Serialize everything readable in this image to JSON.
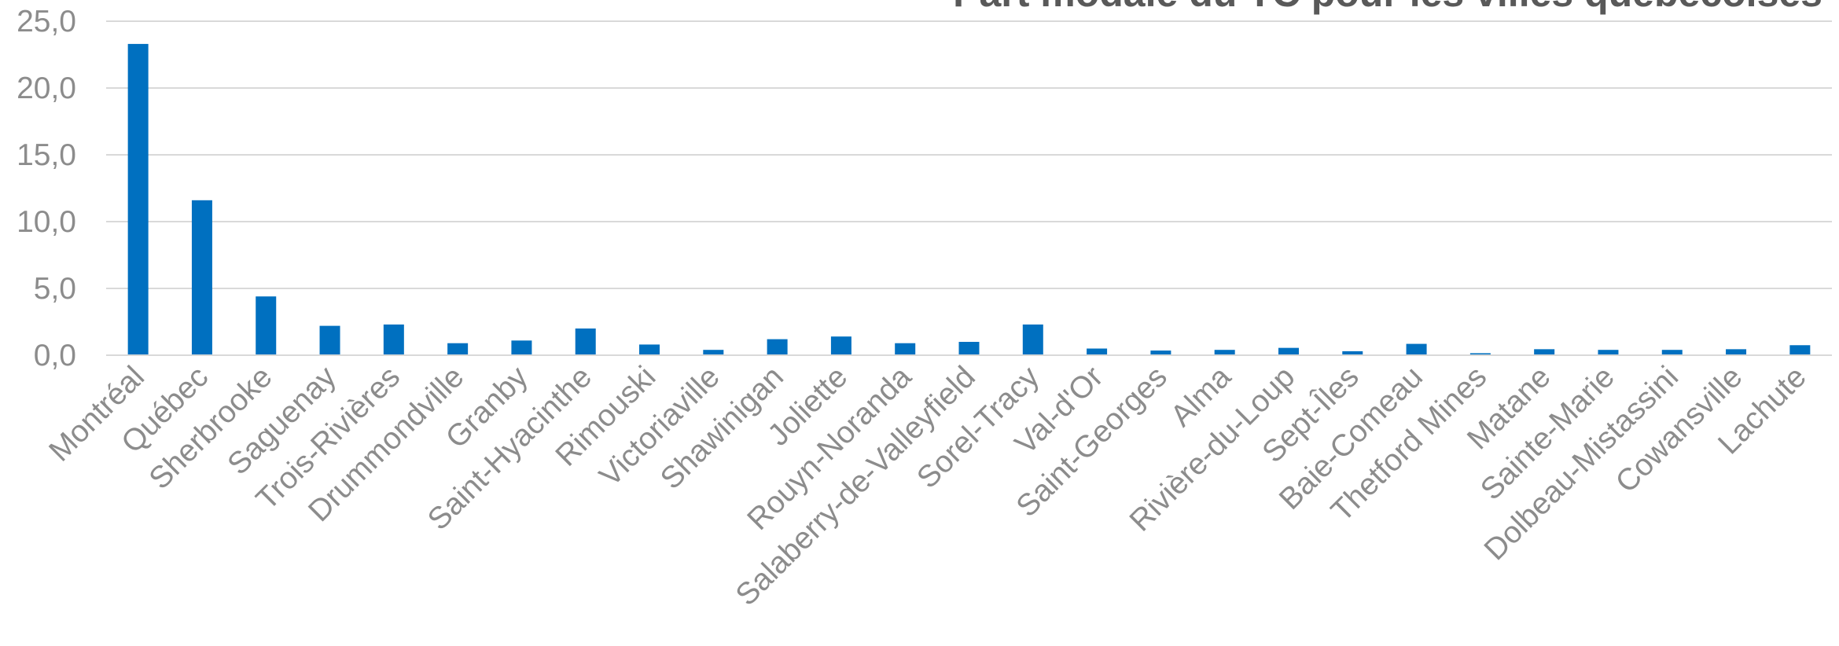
{
  "chart_data": {
    "type": "bar",
    "title": "Part modale du TC pour les villes québécoises",
    "xlabel": "",
    "ylabel": "",
    "ylim": [
      0,
      25
    ],
    "y_ticks": [
      "0,0",
      "5,0",
      "10,0",
      "15,0",
      "20,0",
      "25,0"
    ],
    "y_tick_values": [
      0,
      5,
      10,
      15,
      20,
      25
    ],
    "grid": true,
    "legend": "none",
    "bar_color": "#0070C0",
    "categories": [
      "Montréal",
      "Québec",
      "Sherbrooke",
      "Saguenay",
      "Trois-Rivières",
      "Drummondville",
      "Granby",
      "Saint-Hyacinthe",
      "Rimouski",
      "Victoriaville",
      "Shawinigan",
      "Joliette",
      "Rouyn-Noranda",
      "Salaberry-de-Valleyfield",
      "Sorel-Tracy",
      "Val-d'Or",
      "Saint-Georges",
      "Alma",
      "Rivière-du-Loup",
      "Sept-Îles",
      "Baie-Comeau",
      "Thetford Mines",
      "Matane",
      "Sainte-Marie",
      "Dolbeau-Mistassini",
      "Cowansville",
      "Lachute"
    ],
    "values": [
      23.3,
      11.6,
      4.4,
      2.2,
      2.3,
      0.9,
      1.1,
      2.0,
      0.8,
      0.4,
      1.2,
      1.4,
      0.9,
      1.0,
      2.3,
      0.5,
      0.35,
      0.4,
      0.55,
      0.3,
      0.85,
      0.15,
      0.45,
      0.4,
      0.4,
      0.45,
      0.75
    ]
  }
}
